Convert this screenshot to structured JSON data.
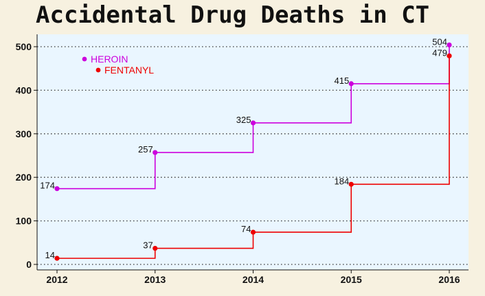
{
  "chart_data": {
    "type": "line",
    "title": "Accidental Drug Deaths in CT",
    "xlabel": "",
    "ylabel": "",
    "x": [
      2012,
      2013,
      2014,
      2015,
      2016
    ],
    "xlim": [
      2012,
      2016
    ],
    "ylim": [
      0,
      500
    ],
    "y_ticks": [
      0,
      100,
      200,
      300,
      400,
      500
    ],
    "step": true,
    "grid": "horizontal-dotted",
    "legend_position": "top-left",
    "series": [
      {
        "name": "HEROIN",
        "color": "#cc00dd",
        "values": [
          174,
          257,
          325,
          415,
          504
        ]
      },
      {
        "name": "FENTANYL",
        "color": "#ee0000",
        "values": [
          14,
          37,
          74,
          184,
          479
        ]
      }
    ]
  },
  "colors": {
    "plot_background": "#eaf6ff",
    "page_background": "#f7f1e0"
  }
}
